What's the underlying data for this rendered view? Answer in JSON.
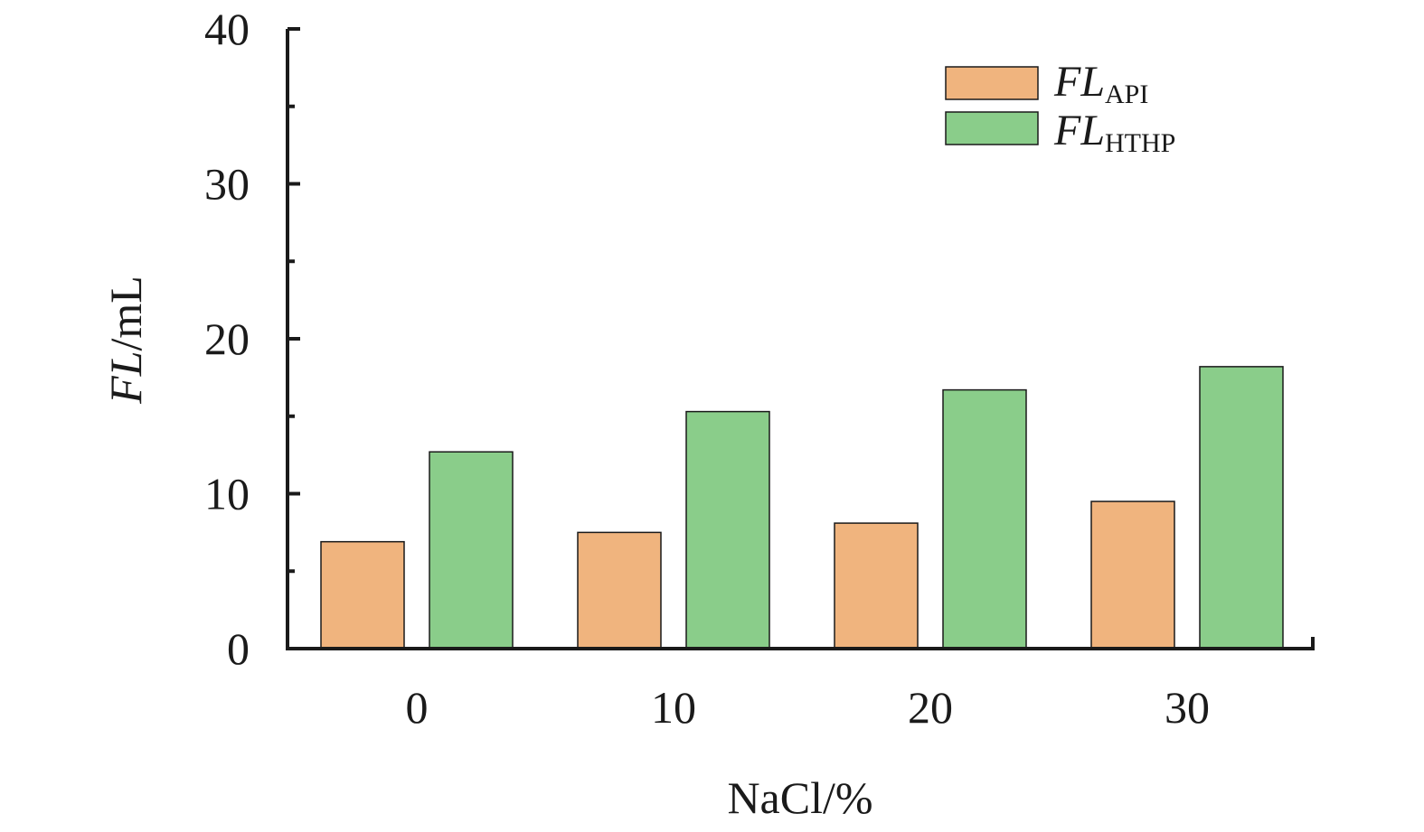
{
  "chart_data": {
    "type": "bar",
    "categories": [
      "0",
      "10",
      "20",
      "30"
    ],
    "series": [
      {
        "name": "FL",
        "name_sub": "API",
        "color": "#f0b47e",
        "values": [
          6.9,
          7.5,
          8.1,
          9.5
        ]
      },
      {
        "name": "FL",
        "name_sub": "HTHP",
        "color": "#8acd8a",
        "values": [
          12.7,
          15.3,
          16.7,
          18.2
        ]
      }
    ],
    "xlabel": "NaCl/%",
    "ylabel_italic": "FL",
    "ylabel_rest": "/mL",
    "ylim": [
      0,
      40
    ],
    "yticks": [
      "0",
      "10",
      "20",
      "30",
      "40"
    ],
    "legend_position": "top-right",
    "grid": false
  }
}
